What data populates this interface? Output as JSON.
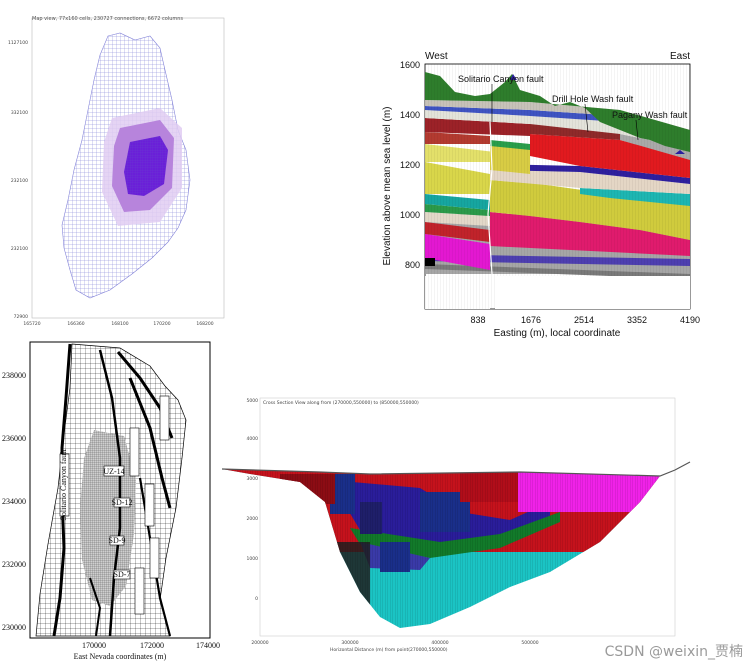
{
  "panel_map": {
    "header": "Map view, 77x160 cells, 230727 connections, 6672 columns",
    "y_ticks": [
      "1127100",
      "332100",
      "232100",
      "232100",
      "72900"
    ],
    "x_ticks": [
      "165720",
      "166360",
      "168100",
      "170200",
      "168200"
    ]
  },
  "panel_section": {
    "west": "West",
    "east": "East",
    "faults": [
      "Solitario Canyon fault",
      "Drill Hole Wash fault",
      "Pagany Wash fault"
    ],
    "ylabel": "Elevation above mean sea level  (m)",
    "xlabel": "Easting (m), local coordinate",
    "y_ticks": [
      "1600",
      "1400",
      "1200",
      "1000",
      "800"
    ],
    "x_ticks": [
      "838",
      "1676",
      "2514",
      "3352",
      "4190"
    ]
  },
  "panel_grid": {
    "y_ticks": [
      "238000",
      "236000",
      "234000",
      "232000",
      "230000"
    ],
    "x_ticks": [
      "170000",
      "172000",
      "174000"
    ],
    "xlabel": "East Nevada coordinates (m)",
    "labels": [
      "UZ-14",
      "SD-12",
      "SD-9",
      "SD-7",
      "Solitario Canyon fault"
    ]
  },
  "panel_cross": {
    "title": "Cross Section View along from (270000,550000) to (850000,550000)",
    "xlabel": "Horizontal Distance (m) from point(270000,550000)",
    "y_ticks": [
      "5000",
      "4000",
      "3000",
      "2000",
      "1000",
      "0"
    ],
    "x_ticks": [
      "200000",
      "300000",
      "400000",
      "500000"
    ]
  },
  "watermark": "CSDN @weixin_贾楠"
}
